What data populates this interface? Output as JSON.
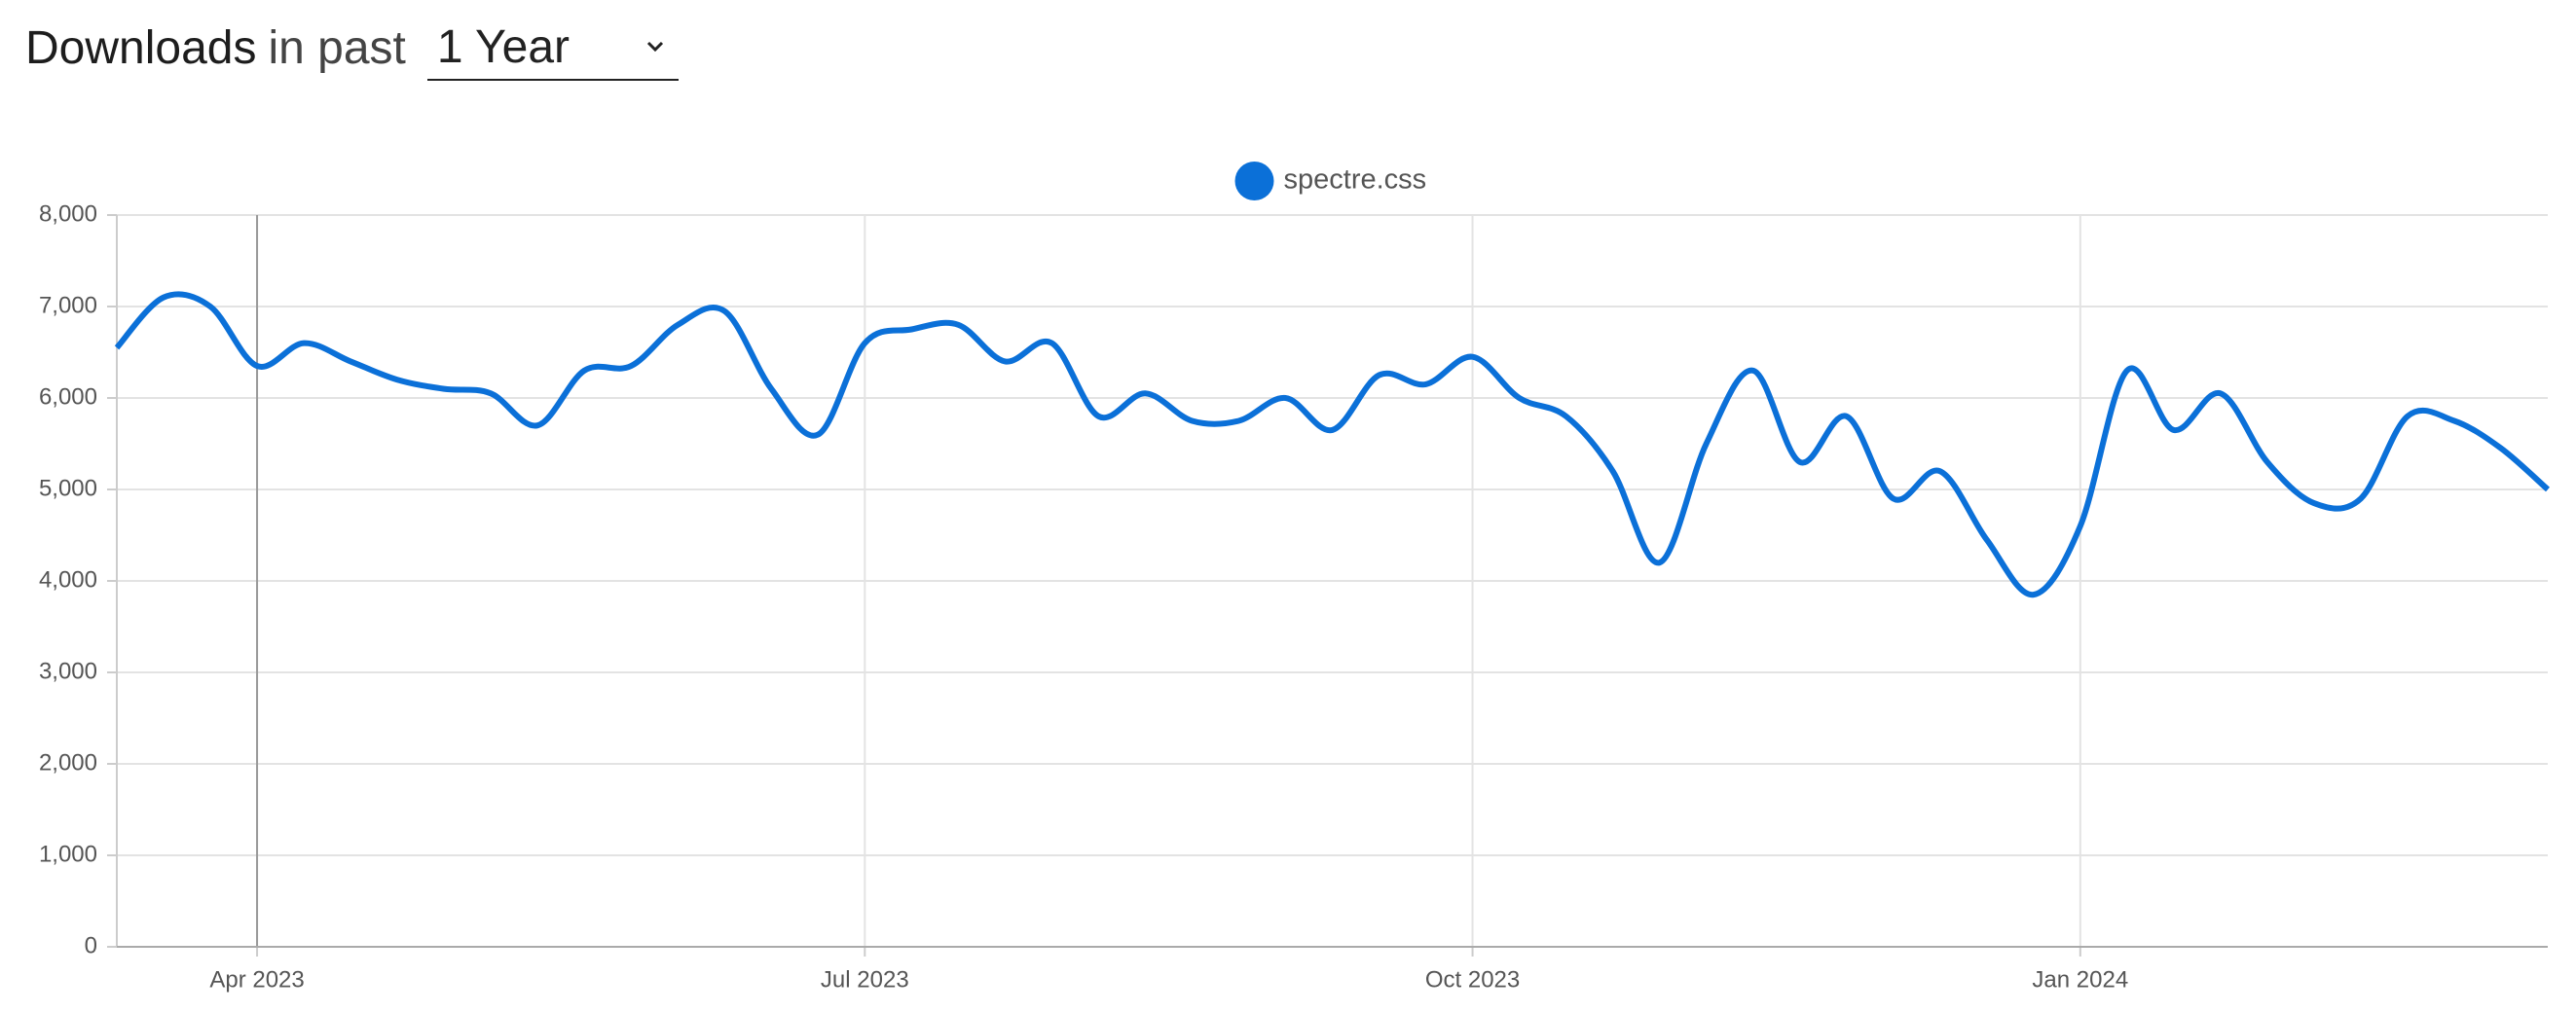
{
  "header": {
    "title": "Downloads",
    "subtitle": "in past",
    "period": "1 Year"
  },
  "chart_data": {
    "type": "line",
    "categories": [
      null,
      null,
      null,
      "Apr 2023",
      null,
      null,
      null,
      null,
      null,
      null,
      null,
      null,
      null,
      null,
      null,
      null,
      "Jul 2023",
      null,
      null,
      null,
      null,
      null,
      null,
      null,
      null,
      null,
      null,
      null,
      null,
      "Oct 2023",
      null,
      null,
      null,
      null,
      null,
      null,
      null,
      null,
      null,
      null,
      null,
      null,
      "Jan 2024",
      null,
      null,
      null,
      null,
      null,
      null,
      null,
      null,
      null,
      null
    ],
    "series": [
      {
        "name": "spectre.css",
        "color": "#0b70d8",
        "values": [
          6550,
          7100,
          7000,
          6350,
          6600,
          6400,
          6200,
          6100,
          6050,
          5700,
          6300,
          6350,
          6800,
          6950,
          6100,
          5600,
          6600,
          6750,
          6800,
          6400,
          6600,
          5800,
          6050,
          5750,
          5750,
          6000,
          5650,
          6250,
          6150,
          6450,
          6000,
          5800,
          5200,
          4200,
          5500,
          6300,
          5300,
          5800,
          4900,
          5200,
          4450,
          3850,
          4600,
          6300,
          5650,
          6050,
          5300,
          4850,
          4900,
          5800,
          5750,
          5450,
          5000
        ]
      }
    ],
    "ylim": [
      0,
      8000
    ],
    "yticks": [
      0,
      {
        "value": 1000,
        "label": "1,000"
      },
      {
        "value": 2000,
        "label": "2,000"
      },
      {
        "value": 3000,
        "label": "3,000"
      },
      {
        "value": 4000,
        "label": "4,000"
      },
      {
        "value": 5000,
        "label": "5,000"
      },
      {
        "value": 6000,
        "label": "6,000"
      },
      {
        "value": 7000,
        "label": "7,000"
      },
      {
        "value": 8000,
        "label": "8,000"
      }
    ],
    "grid": true,
    "legend": "top"
  }
}
